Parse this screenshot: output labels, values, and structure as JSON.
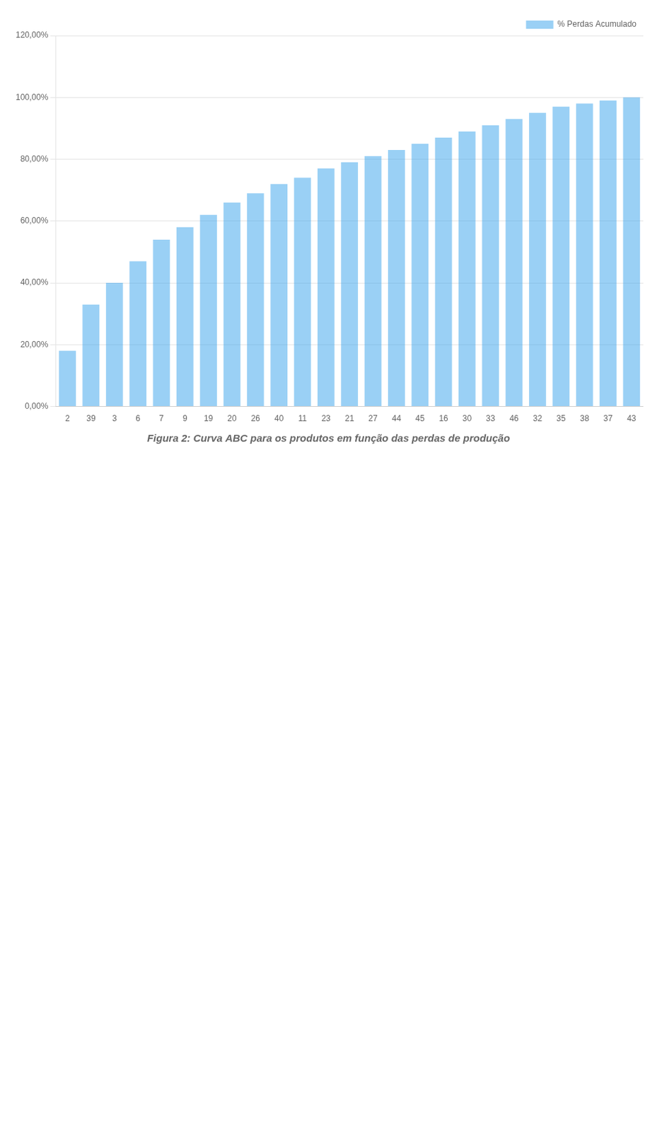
{
  "chart_data": {
    "type": "bar",
    "title": "Figura 2: Curva ABC para os produtos em função das perdas de produção",
    "categories": [
      "2",
      "39",
      "3",
      "6",
      "7",
      "9",
      "19",
      "20",
      "26",
      "40",
      "11",
      "23",
      "21",
      "27",
      "44",
      "45",
      "16",
      "30",
      "33",
      "46",
      "32",
      "35",
      "38",
      "37",
      "43"
    ],
    "series": [
      {
        "name": "% Perdas Acumulado",
        "values": [
          18,
          33,
          40,
          47,
          54,
          58,
          62,
          66,
          69,
          72,
          74,
          77,
          79,
          81,
          83,
          85,
          87,
          89,
          91,
          93,
          95,
          97,
          98,
          99,
          100
        ]
      }
    ],
    "ylim": [
      0,
      120
    ],
    "yticks": [
      {
        "value": 0,
        "label": "0,00%"
      },
      {
        "value": 20,
        "label": "20,00%"
      },
      {
        "value": 40,
        "label": "40,00%"
      },
      {
        "value": 60,
        "label": "60,00%"
      },
      {
        "value": 80,
        "label": "80,00%"
      },
      {
        "value": 100,
        "label": "100,00%"
      },
      {
        "value": 120,
        "label": "120,00%"
      }
    ],
    "grid": true,
    "legend": "top-right"
  }
}
